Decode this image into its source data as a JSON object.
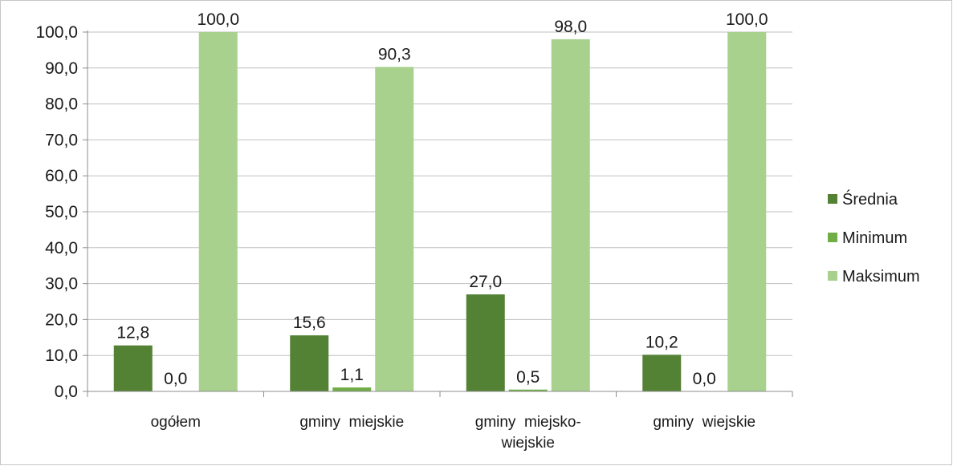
{
  "chart_data": {
    "type": "bar",
    "categories": [
      [
        "ogółem"
      ],
      [
        "gminy  miejskie"
      ],
      [
        "gminy  miejsko-",
        "wiejskie"
      ],
      [
        "gminy  wiejskie"
      ]
    ],
    "series": [
      {
        "name": "Średnia",
        "color": "#548235",
        "values": [
          12.8,
          15.6,
          27.0,
          10.2
        ],
        "labels": [
          "12,8",
          "15,6",
          "27,0",
          "10,2"
        ]
      },
      {
        "name": "Minimum",
        "color": "#70ad47",
        "values": [
          0.0,
          1.1,
          0.5,
          0.0
        ],
        "labels": [
          "0,0",
          "1,1",
          "0,5",
          "0,0"
        ]
      },
      {
        "name": "Maksimum",
        "color": "#a9d18e",
        "values": [
          100.0,
          90.3,
          98.0,
          100.0
        ],
        "labels": [
          "100,0",
          "90,3",
          "98,0",
          "100,0"
        ]
      }
    ],
    "y_ticks": [
      "0,0",
      "10,0",
      "20,0",
      "30,0",
      "40,0",
      "50,0",
      "60,0",
      "70,0",
      "80,0",
      "90,0",
      "100,0"
    ],
    "ylim": [
      0,
      100
    ],
    "grid": true,
    "legend_position": "right",
    "title": "",
    "xlabel": "",
    "ylabel": ""
  }
}
